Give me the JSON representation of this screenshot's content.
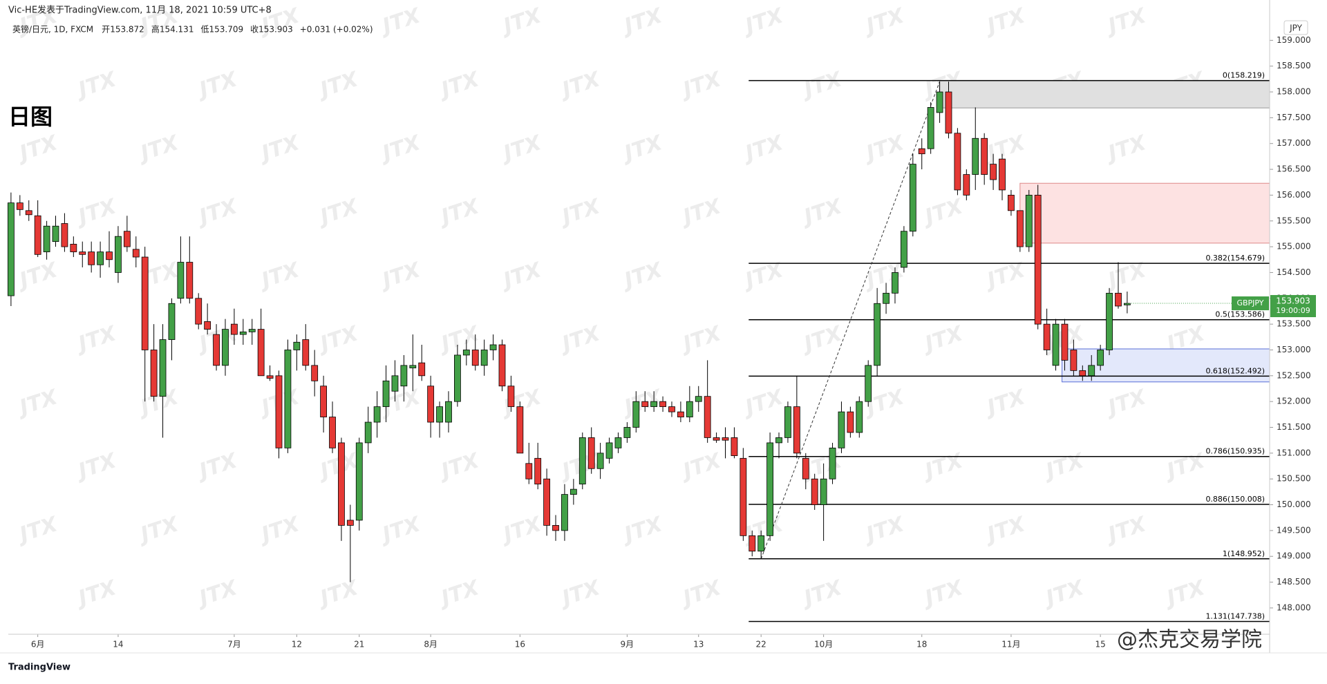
{
  "header": {
    "publisher": "Vic-HE发表于TradingView.com, 11月 18, 2021 10:59 UTC+8",
    "symbol": "英镑/日元, 1D, FXCM",
    "ohlc": [
      {
        "label": "开",
        "value": "153.872"
      },
      {
        "label": "高",
        "value": "154.131"
      },
      {
        "label": "低",
        "value": "153.709"
      },
      {
        "label": "收",
        "value": "153.903"
      }
    ],
    "change": "+0.031 (+0.02%)",
    "chart_label": "日图",
    "currency": "JPY"
  },
  "price_badge": {
    "symbol": "GBPJPY",
    "price": "153.903",
    "countdown": "19:00:09"
  },
  "footer": {
    "logo": "TradingView",
    "credit": "@杰克交易学院"
  },
  "watermark": "JTX",
  "chart_data": {
    "type": "candlestick",
    "up_color": "#43a047",
    "down_color": "#e53935",
    "categories": [
      null,
      null,
      null,
      "6月",
      null,
      null,
      null,
      null,
      null,
      null,
      null,
      null,
      "14",
      null,
      null,
      null,
      null,
      null,
      null,
      null,
      null,
      null,
      null,
      null,
      null,
      "7月",
      null,
      null,
      null,
      null,
      null,
      null,
      "12",
      null,
      null,
      null,
      null,
      null,
      null,
      "21",
      null,
      null,
      null,
      null,
      null,
      null,
      null,
      "8月",
      null,
      null,
      null,
      null,
      null,
      null,
      null,
      null,
      null,
      "16",
      null,
      null,
      null,
      null,
      null,
      null,
      null,
      null,
      null,
      null,
      null,
      "9月",
      null,
      null,
      null,
      null,
      null,
      null,
      null,
      "13",
      null,
      null,
      null,
      null,
      null,
      null,
      "22",
      null,
      null,
      null,
      null,
      null,
      null,
      "10月",
      null,
      null,
      null,
      null,
      null,
      null,
      null,
      null,
      null,
      null,
      "18",
      null,
      null,
      null,
      null,
      null,
      null,
      null,
      null,
      null,
      "11月",
      null,
      null,
      null,
      null,
      null,
      null,
      null,
      null,
      null,
      "15",
      null,
      null,
      null
    ],
    "open": [
      154.05,
      155.85,
      155.7,
      155.6,
      154.9,
      155.1,
      155.45,
      155.05,
      154.9,
      154.9,
      154.65,
      154.9,
      154.5,
      155.3,
      154.95,
      154.8,
      153.0,
      152.1,
      153.2,
      154.0,
      154.7,
      154.0,
      153.55,
      153.3,
      152.7,
      153.5,
      153.3,
      153.35,
      153.4,
      152.5,
      152.5,
      151.1,
      153.0,
      153.2,
      152.7,
      152.3,
      151.7,
      151.2,
      149.7,
      149.7,
      151.2,
      151.6,
      151.9,
      152.2,
      152.3,
      152.65,
      152.75,
      152.3,
      151.6,
      151.6,
      152.0,
      152.9,
      153.0,
      152.7,
      153.0,
      153.1,
      152.3,
      151.9,
      150.8,
      150.9,
      150.5,
      149.6,
      149.5,
      150.2,
      150.4,
      151.3,
      150.7,
      150.9,
      151.1,
      151.3,
      151.5,
      152.0,
      151.9,
      152.0,
      151.9,
      151.8,
      151.7,
      152.0,
      152.1,
      151.3,
      151.3,
      151.3,
      150.9,
      149.4,
      149.1,
      149.4,
      151.2,
      151.3,
      151.9,
      150.9,
      150.5,
      150.0,
      150.5,
      151.1,
      151.8,
      151.4,
      152.0,
      152.7,
      153.9,
      154.1,
      154.6,
      155.3,
      156.9,
      156.9,
      157.6,
      158.0,
      157.2,
      156.4,
      156.4,
      157.1,
      156.6,
      156.7,
      156.0,
      155.7,
      155.0,
      156.0,
      153.5,
      152.7,
      153.5,
      153.0,
      152.6,
      152.5,
      152.7,
      153.0,
      154.1,
      153.872
    ],
    "high": [
      156.05,
      156.0,
      155.9,
      155.9,
      155.5,
      155.6,
      155.65,
      155.2,
      155.1,
      155.1,
      155.1,
      155.3,
      155.4,
      155.6,
      155.2,
      155.0,
      153.5,
      153.5,
      154.0,
      155.2,
      155.2,
      154.1,
      153.9,
      153.5,
      153.6,
      153.8,
      153.6,
      153.6,
      153.8,
      152.7,
      152.6,
      153.2,
      153.3,
      153.5,
      153.0,
      152.5,
      152.0,
      151.3,
      150.0,
      151.3,
      151.9,
      152.2,
      152.7,
      152.8,
      152.9,
      153.3,
      153.1,
      152.5,
      152.0,
      152.2,
      153.1,
      153.2,
      153.3,
      153.2,
      153.3,
      153.2,
      152.5,
      152.0,
      151.2,
      151.2,
      150.7,
      149.8,
      150.4,
      150.5,
      151.4,
      151.5,
      151.2,
      151.3,
      151.4,
      151.6,
      152.2,
      152.2,
      152.2,
      152.1,
      152.0,
      152.0,
      152.3,
      152.3,
      152.8,
      151.4,
      151.5,
      151.5,
      151.1,
      149.5,
      149.5,
      151.4,
      151.4,
      152.0,
      152.5,
      151.0,
      150.6,
      150.8,
      151.2,
      152.0,
      151.9,
      152.1,
      152.8,
      154.2,
      154.3,
      154.6,
      155.4,
      156.8,
      157.1,
      157.8,
      158.2,
      158.2,
      157.3,
      156.5,
      157.7,
      157.2,
      156.8,
      156.8,
      156.1,
      155.7,
      156.1,
      156.2,
      153.8,
      153.6,
      153.6,
      153.2,
      152.7,
      152.9,
      153.1,
      154.2,
      154.7,
      154.131
    ],
    "low": [
      153.85,
      155.6,
      155.5,
      154.8,
      154.75,
      155.0,
      154.9,
      154.8,
      154.6,
      154.5,
      154.4,
      154.6,
      154.3,
      154.9,
      154.6,
      152.0,
      152.0,
      151.3,
      152.8,
      153.9,
      153.9,
      153.4,
      153.3,
      152.6,
      152.5,
      153.1,
      153.1,
      153.1,
      152.5,
      152.4,
      150.9,
      151.0,
      152.6,
      152.6,
      152.1,
      151.4,
      151.0,
      149.3,
      148.5,
      149.5,
      151.0,
      151.3,
      151.6,
      152.0,
      152.0,
      152.2,
      152.4,
      151.3,
      151.3,
      151.4,
      151.9,
      152.7,
      152.6,
      152.5,
      152.8,
      152.2,
      151.8,
      151.0,
      150.4,
      150.3,
      149.4,
      149.3,
      149.3,
      150.0,
      150.3,
      150.6,
      150.5,
      150.8,
      151.0,
      151.2,
      151.4,
      151.8,
      151.8,
      151.8,
      151.7,
      151.6,
      151.6,
      151.8,
      151.2,
      151.2,
      150.9,
      150.9,
      149.3,
      149.0,
      148.95,
      149.3,
      150.9,
      151.2,
      150.9,
      150.3,
      149.9,
      149.3,
      150.4,
      151.0,
      151.3,
      151.3,
      151.9,
      152.5,
      153.7,
      153.9,
      154.5,
      155.2,
      156.5,
      156.8,
      157.4,
      157.1,
      156.0,
      155.9,
      156.1,
      156.2,
      156.1,
      155.9,
      155.6,
      154.9,
      154.9,
      153.4,
      152.9,
      152.6,
      152.6,
      152.5,
      152.4,
      152.4,
      152.6,
      152.9,
      153.8,
      153.709
    ],
    "close": [
      155.85,
      155.72,
      155.62,
      154.85,
      155.4,
      155.4,
      155.0,
      154.9,
      154.85,
      154.65,
      154.9,
      154.75,
      155.2,
      155.0,
      154.8,
      153.0,
      152.1,
      153.2,
      153.9,
      154.7,
      154.0,
      153.5,
      153.4,
      152.7,
      153.4,
      153.3,
      153.35,
      153.4,
      152.5,
      152.45,
      151.1,
      153.0,
      153.15,
      152.7,
      152.4,
      151.7,
      151.1,
      149.6,
      149.6,
      151.2,
      151.6,
      151.9,
      152.4,
      152.5,
      152.7,
      152.7,
      152.5,
      151.6,
      151.9,
      152.0,
      152.9,
      153.0,
      152.7,
      153.0,
      153.1,
      152.3,
      151.9,
      151.0,
      150.5,
      150.4,
      149.6,
      149.5,
      150.2,
      150.3,
      151.3,
      150.7,
      151.0,
      151.2,
      151.3,
      151.5,
      152.0,
      151.9,
      152.0,
      151.9,
      151.8,
      151.7,
      152.0,
      152.1,
      151.3,
      151.25,
      151.25,
      150.95,
      149.4,
      149.1,
      149.4,
      151.2,
      151.3,
      151.9,
      151.0,
      150.5,
      150.0,
      150.5,
      151.1,
      151.8,
      151.4,
      152.0,
      152.7,
      153.9,
      154.1,
      154.5,
      155.3,
      156.6,
      156.8,
      157.7,
      158.0,
      157.2,
      156.1,
      156.0,
      157.1,
      156.4,
      156.3,
      156.1,
      155.7,
      155.0,
      156.0,
      153.5,
      153.0,
      153.5,
      152.8,
      152.6,
      152.5,
      152.7,
      153.0,
      154.1,
      153.85,
      153.903
    ],
    "ylim": [
      147.49,
      159.46
    ],
    "yticks": [
      {
        "value": 148,
        "label": "148.000"
      },
      {
        "value": 148.5,
        "label": "148.500"
      },
      {
        "value": 149,
        "label": "149.000"
      },
      {
        "value": 149.5,
        "label": "149.500"
      },
      {
        "value": 150,
        "label": "150.000"
      },
      {
        "value": 150.5,
        "label": "150.500"
      },
      {
        "value": 151,
        "label": "151.000"
      },
      {
        "value": 151.5,
        "label": "151.500"
      },
      {
        "value": 152,
        "label": "152.000"
      },
      {
        "value": 152.5,
        "label": "152.500"
      },
      {
        "value": 153,
        "label": "153.000"
      },
      {
        "value": 153.5,
        "label": "153.500"
      },
      {
        "value": 154,
        "label": "154.000"
      },
      {
        "value": 154.5,
        "label": "154.500"
      },
      {
        "value": 155,
        "label": "155.000"
      },
      {
        "value": 155.5,
        "label": "155.500"
      },
      {
        "value": 156,
        "label": "156.000"
      },
      {
        "value": 156.5,
        "label": "156.500"
      },
      {
        "value": 157,
        "label": "157.000"
      },
      {
        "value": 157.5,
        "label": "157.500"
      },
      {
        "value": 158,
        "label": "158.000"
      },
      {
        "value": 158.5,
        "label": "158.500"
      },
      {
        "value": 159,
        "label": "159.000"
      }
    ],
    "fib_levels": [
      {
        "value": 158.219,
        "label": "0(158.219)"
      },
      {
        "value": 154.679,
        "label": "0.382(154.679)"
      },
      {
        "value": 153.586,
        "label": "0.5(153.586)"
      },
      {
        "value": 152.492,
        "label": "0.618(152.492)"
      },
      {
        "value": 150.935,
        "label": "0.786(150.935)"
      },
      {
        "value": 150.008,
        "label": "0.886(150.008)"
      },
      {
        "value": 148.952,
        "label": "1(148.952)"
      },
      {
        "value": 147.738,
        "label": "1.131(147.738)"
      }
    ],
    "zones": [
      {
        "range": [
          157.69,
          158.219
        ],
        "color": "#e0e0e0"
      },
      {
        "range": [
          155.07,
          156.23
        ],
        "color": "#fde2e2"
      },
      {
        "range": [
          152.38,
          153.02
        ],
        "color": "#e3e8fb"
      }
    ]
  }
}
